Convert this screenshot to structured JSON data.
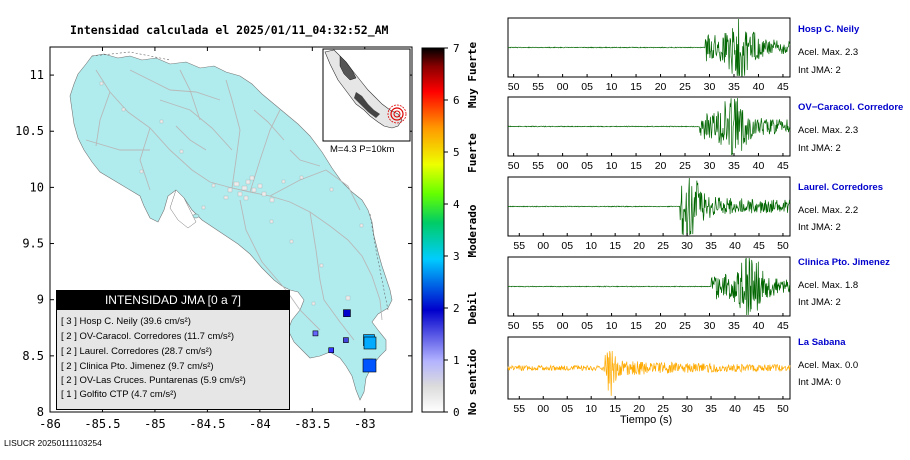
{
  "map": {
    "title": "Intensidad calculada el 2025/01/11_04:32:52_AM",
    "footer_id": "LISUCR 20250111103254",
    "inset_label": "M=4.3 P=10km",
    "lon_ticks": [
      "-86",
      "-85.5",
      "-85",
      "-84.5",
      "-84",
      "-83.5",
      "-83"
    ],
    "lat_ticks": [
      "11",
      "10.5",
      "10",
      "9.5",
      "9",
      "8.5",
      "8"
    ],
    "colors": {
      "land": "#b0ecee",
      "water": "#ffffff",
      "roads": "#b8b8b8",
      "cities": "#e8e8e8"
    }
  },
  "colorbar": {
    "ticks": [
      "0",
      "1",
      "2",
      "3",
      "4",
      "5",
      "6",
      "7"
    ],
    "labels": [
      "No sentido",
      "Debil",
      "Moderado",
      "Fuerte",
      "Muy Fuerte"
    ],
    "colors": [
      "#ffffff",
      "#b3b3ff",
      "#0000cc",
      "#00aaff",
      "#00cc44",
      "#ccff00",
      "#ffcc00",
      "#ff6600",
      "#cc0000",
      "#000000"
    ]
  },
  "legend": {
    "header": "INTENSIDAD JMA [0 a 7]",
    "rows": [
      "[ 3 ]  Hosp C. Neily (39.6 cm/s²)",
      "[ 2 ]  OV-Caracol. Corredores (11.7 cm/s²)",
      "[ 2 ]  Laurel. Corredores (28.7 cm/s²)",
      "[ 2 ]  Clinica Pto. Jimenez (9.7 cm/s²)",
      "[ 2 ]  OV-Las Cruces. Puntarenas (5.9 cm/s²)",
      "[ 1 ]  Golfito CTP (4.7 cm/s²)"
    ]
  },
  "stations": [
    {
      "name": "Hosp C. Neily",
      "accel": "Acel. Max. 2.3",
      "jma": "Int JMA: 2",
      "color": "#006600",
      "ticks": [
        "50",
        "55",
        "00",
        "05",
        "10",
        "15",
        "20",
        "25",
        "30",
        "35",
        "40",
        "45"
      ]
    },
    {
      "name": "OV−Caracol. Corredore",
      "accel": "Acel. Max. 2.3",
      "jma": "Int JMA: 2",
      "color": "#006600",
      "ticks": [
        "50",
        "55",
        "00",
        "05",
        "10",
        "15",
        "20",
        "25",
        "30",
        "35",
        "40",
        "45"
      ]
    },
    {
      "name": "Laurel. Corredores",
      "accel": "Acel. Max. 2.2",
      "jma": "Int JMA: 2",
      "color": "#006600",
      "ticks": [
        "55",
        "00",
        "05",
        "10",
        "15",
        "20",
        "25",
        "30",
        "35",
        "40",
        "45",
        "50"
      ]
    },
    {
      "name": "Clinica Pto. Jimenez",
      "accel": "Acel. Max. 1.8",
      "jma": "Int JMA: 2",
      "color": "#006600",
      "ticks": [
        "50",
        "55",
        "00",
        "05",
        "10",
        "15",
        "20",
        "25",
        "30",
        "35",
        "40",
        "45"
      ]
    },
    {
      "name": "La Sabana",
      "accel": "Acel. Max. 0.0",
      "jma": "Int JMA: 0",
      "color": "#ffaa00",
      "ticks": [
        "55",
        "00",
        "05",
        "10",
        "15",
        "20",
        "25",
        "30",
        "35",
        "40",
        "45",
        "50"
      ]
    }
  ],
  "chart_data": [
    {
      "type": "map",
      "title": "Intensidad calculada el 2025/01/11_04:32:52_AM",
      "xlim": [
        -86,
        -82.55
      ],
      "ylim": [
        8,
        11.25
      ],
      "xticks": [
        -86,
        -85.5,
        -85,
        -84.5,
        -84,
        -83.5,
        -83
      ],
      "yticks": [
        8,
        8.5,
        9,
        9.5,
        10,
        10.5,
        11
      ],
      "stations": [
        {
          "lon": -82.96,
          "lat": 8.64,
          "jma": 3,
          "color": "#00aaff"
        },
        {
          "lon": -82.96,
          "lat": 8.44,
          "jma": 2,
          "color": "#0066ff"
        },
        {
          "lon": -83.17,
          "lat": 8.88,
          "jma": 2,
          "color": "#0000cc"
        },
        {
          "lon": -83.47,
          "lat": 8.7,
          "jma": 1,
          "color": "#6666ff"
        },
        {
          "lon": -83.32,
          "lat": 8.55,
          "jma": 1,
          "color": "#3333ff"
        },
        {
          "lon": -83.18,
          "lat": 8.64,
          "jma": 1,
          "color": "#4444dd"
        }
      ],
      "colorbar": {
        "range": [
          0,
          7
        ],
        "labels": [
          "No sentido",
          "Debil",
          "Moderado",
          "Fuerte",
          "Muy Fuerte"
        ]
      }
    },
    {
      "type": "line",
      "xlabel": "Tiempo (s)",
      "series": [
        {
          "name": "Hosp C. Neily",
          "max_accel": 2.3,
          "jma": 2,
          "onset_frac": 0.7,
          "peak_frac": 0.82
        },
        {
          "name": "OV−Caracol. Corredore",
          "max_accel": 2.3,
          "jma": 2,
          "onset_frac": 0.68,
          "peak_frac": 0.8
        },
        {
          "name": "Laurel. Corredores",
          "max_accel": 2.2,
          "jma": 2,
          "onset_frac": 0.61,
          "peak_frac": 0.64
        },
        {
          "name": "Clinica Pto. Jimenez",
          "max_accel": 1.8,
          "jma": 2,
          "onset_frac": 0.72,
          "peak_frac": 0.86
        },
        {
          "name": "La Sabana",
          "max_accel": 0.0,
          "jma": 0,
          "onset_frac": 0.0,
          "peak_frac": 0.36
        }
      ]
    }
  ],
  "waveforms": {
    "xlabel": "Tiempo (s)"
  }
}
